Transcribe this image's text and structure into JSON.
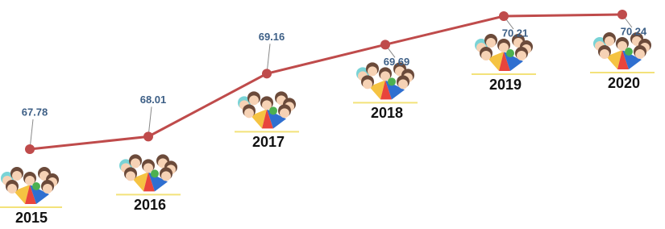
{
  "chart_data": {
    "type": "line",
    "categories": [
      "2015",
      "2016",
      "2017",
      "2018",
      "2019",
      "2020"
    ],
    "values": [
      67.78,
      68.01,
      69.16,
      69.69,
      70.21,
      70.24
    ],
    "color": "#bf4b4b"
  }
}
